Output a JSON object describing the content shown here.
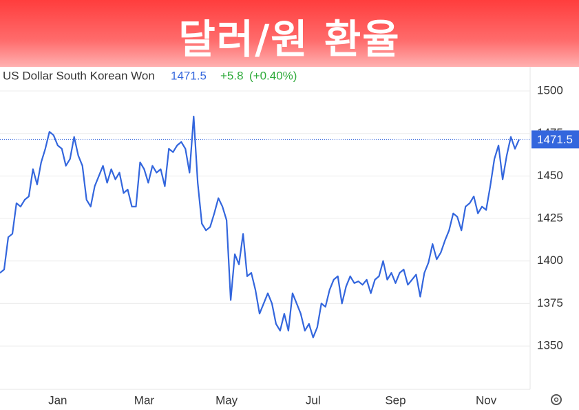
{
  "banner": {
    "title": "달러/원 환율"
  },
  "quote": {
    "name": "US Dollar South Korean Won",
    "change": "+5.8",
    "change_pct": "(+0.40%)"
  },
  "chart_data": {
    "type": "line",
    "color": "#3366dd",
    "grid": true,
    "categories": [
      null,
      null,
      null,
      null,
      null,
      null,
      null,
      null,
      null,
      null,
      null,
      null,
      null,
      null,
      "Jan",
      null,
      null,
      null,
      null,
      null,
      null,
      null,
      null,
      null,
      null,
      null,
      null,
      null,
      null,
      null,
      null,
      null,
      null,
      null,
      null,
      "Mar",
      null,
      null,
      null,
      null,
      null,
      null,
      null,
      null,
      null,
      null,
      null,
      null,
      null,
      null,
      null,
      null,
      null,
      null,
      null,
      "May",
      null,
      null,
      null,
      null,
      null,
      null,
      null,
      null,
      null,
      null,
      null,
      null,
      null,
      null,
      null,
      null,
      null,
      null,
      null,
      null,
      "Jul",
      null,
      null,
      null,
      null,
      null,
      null,
      null,
      null,
      null,
      null,
      null,
      null,
      null,
      null,
      null,
      null,
      null,
      null,
      null,
      "Sep",
      null,
      null,
      null,
      null,
      null,
      null,
      null,
      null,
      null,
      null,
      null,
      null,
      null,
      null,
      null,
      null,
      null,
      null,
      null,
      null,
      null,
      "Nov",
      null,
      null,
      null,
      null,
      null,
      null,
      null,
      null
    ],
    "values": [
      1393,
      1395,
      1414,
      1416,
      1434,
      1432,
      1436,
      1438,
      1454,
      1445,
      1458,
      1466,
      1476,
      1474,
      1468,
      1466,
      1456,
      1460,
      1473,
      1462,
      1456,
      1436,
      1432,
      1444,
      1450,
      1456,
      1446,
      1454,
      1448,
      1452,
      1440,
      1442,
      1432,
      1432,
      1458,
      1454,
      1446,
      1456,
      1452,
      1454,
      1444,
      1466,
      1464,
      1468,
      1470,
      1466,
      1452,
      1485,
      1446,
      1422,
      1418,
      1420,
      1428,
      1437,
      1432,
      1424,
      1377,
      1404,
      1398,
      1416,
      1391,
      1393,
      1383,
      1369,
      1375,
      1381,
      1375,
      1363,
      1359,
      1369,
      1359,
      1381,
      1375,
      1369,
      1359,
      1363,
      1355,
      1361,
      1375,
      1373,
      1383,
      1389,
      1391,
      1375,
      1385,
      1391,
      1387,
      1388,
      1386,
      1389,
      1381,
      1389,
      1391,
      1400,
      1389,
      1393,
      1387,
      1393,
      1395,
      1386,
      1389,
      1392,
      1379,
      1393,
      1399,
      1410,
      1401,
      1405,
      1412,
      1418,
      1428,
      1426,
      1418,
      1432,
      1434,
      1438,
      1428,
      1432,
      1430,
      1444,
      1460,
      1468,
      1448,
      1462,
      1473,
      1466,
      1471.5
    ],
    "ylim": [
      1324.5,
      1514.2
    ],
    "yticks": [
      1350,
      1375,
      1400,
      1425,
      1450,
      1475,
      1500
    ]
  }
}
